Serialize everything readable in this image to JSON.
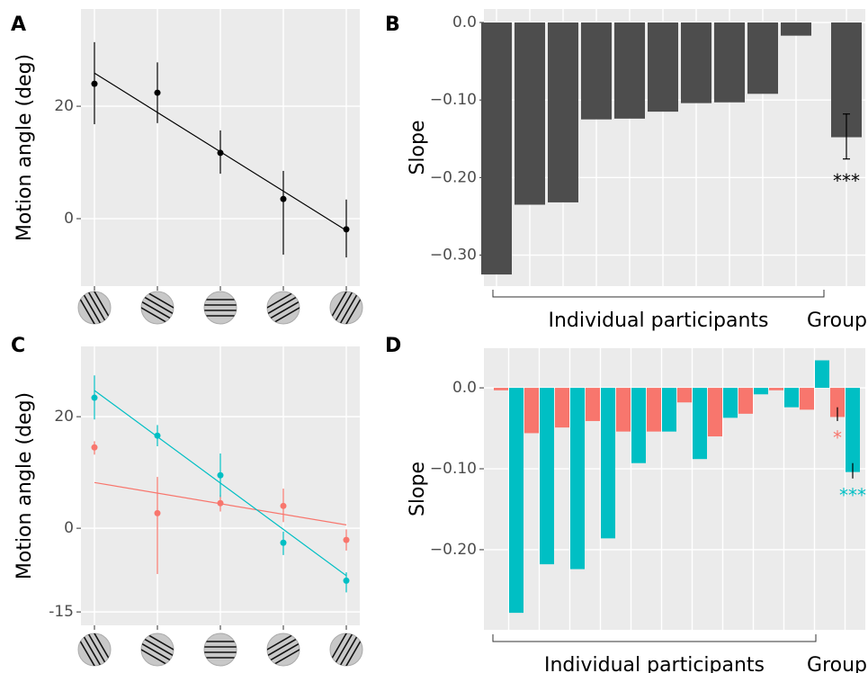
{
  "chart_data": [
    {
      "type": "errorbar",
      "panel": "A",
      "y_label": "Motion angle (deg)",
      "categories": [
        null,
        null,
        null,
        null,
        null
      ],
      "ylim": [
        -12,
        37.3
      ],
      "yticks": [
        0,
        20
      ],
      "grid": true,
      "series": [
        {
          "color": "#000000",
          "values": [
            24,
            22.4,
            11.7,
            3.5,
            -1.9
          ],
          "err_low": [
            16.8,
            17,
            8,
            -6.4,
            -6.9
          ],
          "err_high": [
            31.4,
            27.8,
            15.7,
            8.5,
            3.4
          ],
          "fit": [
            25.9,
            -2.1
          ]
        }
      ]
    },
    {
      "type": "bar",
      "panel": "B",
      "y_label": "Slope",
      "color": "#4d4d4d",
      "categories": [
        null,
        null,
        null,
        null,
        null,
        null,
        null,
        null,
        null,
        null,
        null
      ],
      "values": [
        -0.325,
        -0.235,
        -0.232,
        -0.125,
        -0.124,
        -0.115,
        -0.104,
        -0.103,
        -0.092,
        -0.017,
        -0.148
      ],
      "err_low": [
        null,
        null,
        null,
        null,
        null,
        null,
        null,
        null,
        null,
        null,
        -0.176
      ],
      "err_high": [
        null,
        null,
        null,
        null,
        null,
        null,
        null,
        null,
        null,
        null,
        -0.118
      ],
      "sig": "***",
      "x_labels": [
        "Individual participants",
        "Group"
      ],
      "ylim": [
        -0.34,
        0.0174
      ],
      "yticks": [
        {
          "value": 0,
          "label": "0.0"
        },
        {
          "value": -0.1,
          "label": "−0.10"
        },
        {
          "value": -0.2,
          "label": "−0.20"
        },
        {
          "value": -0.3,
          "label": "−0.30"
        }
      ],
      "grid": true
    },
    {
      "type": "errorbar",
      "panel": "C",
      "y_label": "Motion angle (deg)",
      "categories": [
        null,
        null,
        null,
        null,
        null
      ],
      "ylim": [
        -17.4,
        32.6
      ],
      "yticks": [
        -15,
        0,
        20
      ],
      "grid": true,
      "series": [
        {
          "color": "#F8766D",
          "values": [
            14.5,
            2.7,
            4.5,
            4.0,
            -2.1
          ],
          "err_low": [
            13.2,
            -8.2,
            3,
            1.1,
            -4
          ],
          "err_high": [
            15.6,
            9.2,
            6,
            7.1,
            -0.2
          ],
          "fit": [
            8.2,
            0.6
          ]
        },
        {
          "color": "#00BFC4",
          "values": [
            23.4,
            16.6,
            9.5,
            -2.6,
            -9.4
          ],
          "err_low": [
            19.5,
            14.7,
            5.6,
            -4.8,
            -11.5
          ],
          "err_high": [
            27.4,
            18.5,
            13.4,
            -0.6,
            -7.9
          ],
          "fit": [
            24.7,
            -8.5
          ]
        }
      ]
    },
    {
      "type": "groupedbar",
      "panel": "D",
      "y_label": "Slope",
      "categories": [
        null,
        null,
        null,
        null,
        null,
        null,
        null,
        null,
        null,
        null,
        null,
        null
      ],
      "x_labels": [
        "Individual participants",
        "Group"
      ],
      "ylim": [
        -0.299,
        0.049
      ],
      "yticks": [
        {
          "value": 0,
          "label": "0.0"
        },
        {
          "value": -0.1,
          "label": "−0.10"
        },
        {
          "value": -0.2,
          "label": "−0.20"
        }
      ],
      "grid": true,
      "series": [
        {
          "color": "#F8766D",
          "values": [
            -0.003,
            -0.056,
            -0.049,
            -0.041,
            -0.054,
            -0.054,
            -0.018,
            -0.06,
            -0.032,
            -0.003,
            -0.027,
            -0.036
          ],
          "err_low": [
            null,
            null,
            null,
            null,
            null,
            null,
            null,
            null,
            null,
            null,
            null,
            -0.041
          ],
          "err_high": [
            null,
            null,
            null,
            null,
            null,
            null,
            null,
            null,
            null,
            null,
            null,
            -0.024
          ],
          "sig": "*"
        },
        {
          "color": "#00BFC4",
          "values": [
            -0.278,
            -0.218,
            -0.224,
            -0.186,
            -0.093,
            -0.054,
            -0.088,
            -0.037,
            -0.008,
            -0.024,
            0.034,
            -0.104
          ],
          "err_low": [
            null,
            null,
            null,
            null,
            null,
            null,
            null,
            null,
            null,
            null,
            null,
            -0.112
          ],
          "err_high": [
            null,
            null,
            null,
            null,
            null,
            null,
            null,
            null,
            null,
            null,
            null,
            -0.093
          ],
          "sig": "***"
        }
      ]
    }
  ]
}
